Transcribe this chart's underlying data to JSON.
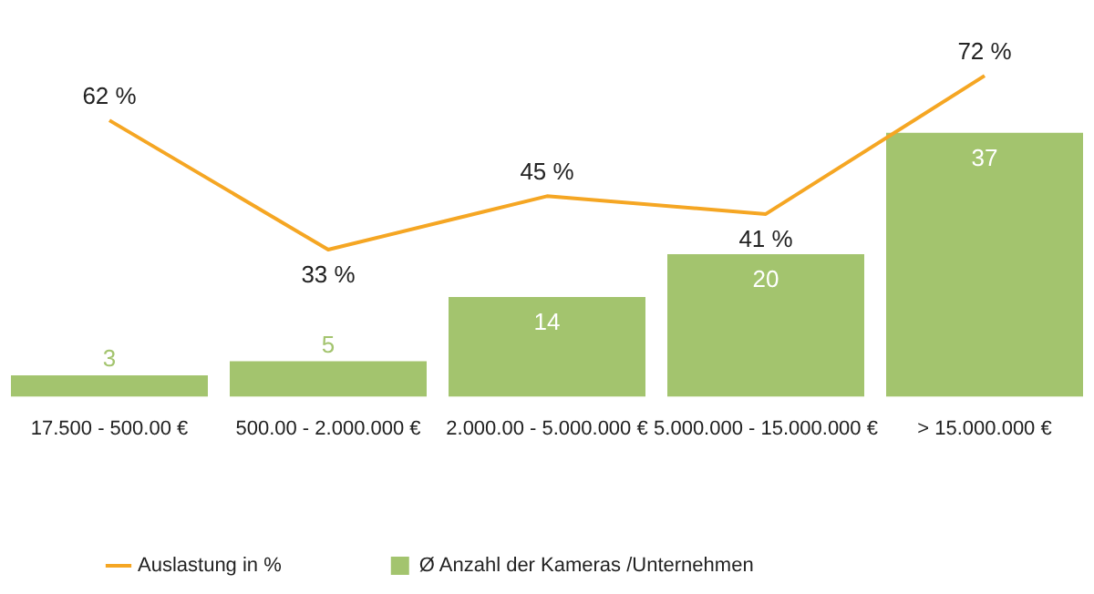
{
  "chart_data": {
    "type": "bar",
    "categories": [
      "17.500 - 500.00 €",
      "500.00 - 2.000.000 €",
      "2.000.00 - 5.000.000 €",
      "5.000.000 - 15.000.000 €",
      "> 15.000.000 €"
    ],
    "series": [
      {
        "name": "Ø Anzahl der Kameras /Unternehmen",
        "color": "#a3c46e",
        "values": [
          3,
          5,
          14,
          20,
          37
        ],
        "value_labels": [
          "3",
          "5",
          "14",
          "20",
          "37"
        ]
      },
      {
        "name": "Auslastung in %",
        "type": "line",
        "axis": "y2",
        "color": "#f5a623",
        "values": [
          62,
          33,
          45,
          41,
          72
        ],
        "value_labels": [
          "62 %",
          "33 %",
          "45 %",
          "41 %",
          "72 %"
        ]
      }
    ],
    "legend": "bottom left",
    "grid": false,
    "tick_labels": "x",
    "marker": "none",
    "line_style": "solid"
  }
}
